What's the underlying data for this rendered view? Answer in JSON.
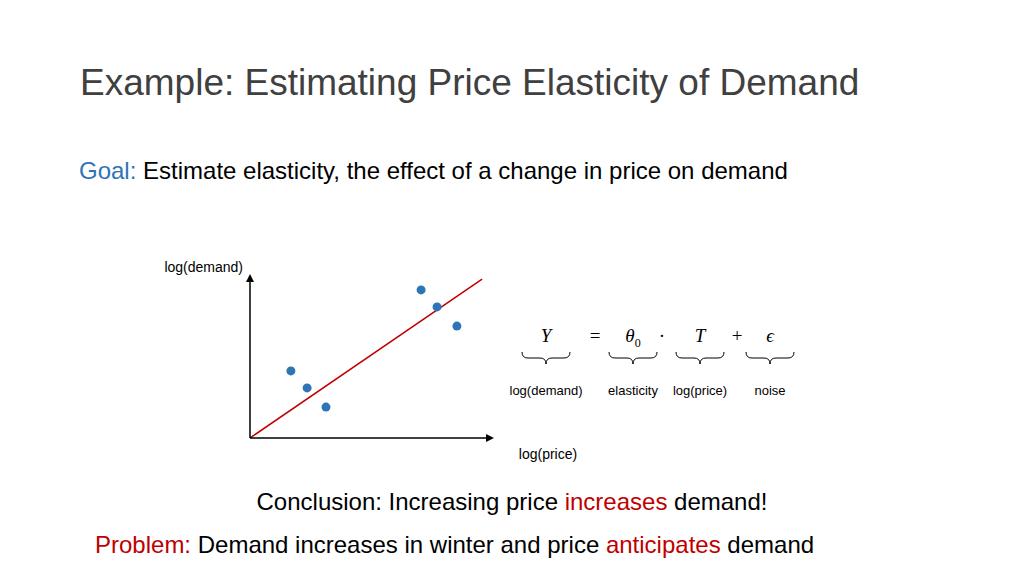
{
  "slide": {
    "title": "Example: Estimating Price Elasticity of Demand",
    "goal": [
      {
        "text": "Goal:",
        "color": "#2e75b6"
      },
      {
        "text": " Estimate elasticity, the effect of a change in price on demand"
      }
    ],
    "equation": [
      {
        "symbol": "Y",
        "label": "log(demand)"
      },
      {
        "symbol": "="
      },
      {
        "symbol": "θ",
        "subscript": "0",
        "label": "elasticity"
      },
      {
        "symbol": "·"
      },
      {
        "symbol": "T",
        "label": "log(price)"
      },
      {
        "symbol": "+"
      },
      {
        "symbol": "ϵ",
        "label": "noise"
      }
    ],
    "conclusion": [
      {
        "text": "Conclusion: Increasing price "
      },
      {
        "text": "increases",
        "color": "#c00000"
      },
      {
        "text": " demand!"
      }
    ],
    "problem": [
      {
        "text": "Problem:",
        "color": "#c00000"
      },
      {
        "text": " Demand increases in winter and price "
      },
      {
        "text": "anticipates",
        "color": "#c00000"
      },
      {
        "text": " demand"
      }
    ]
  },
  "chart_data": {
    "type": "scatter",
    "x_label": "log(price)",
    "y_label": "log(demand)",
    "xlim": [
      0,
      10
    ],
    "ylim": [
      0,
      10
    ],
    "tick_labels": false,
    "grid": false,
    "series": [
      {
        "type": "scatter",
        "marker": "circle",
        "color": "#2e75b6",
        "x": [
          1.69,
          2.36,
          3.14,
          7.07,
          7.73,
          8.55
        ],
        "values": [
          4.14,
          3.09,
          1.91,
          9.14,
          8.09,
          6.91
        ]
      },
      {
        "type": "line",
        "line_style": "solid",
        "color": "#c00000",
        "x": [
          0,
          9.59
        ],
        "values": [
          0,
          9.81
        ]
      }
    ]
  }
}
